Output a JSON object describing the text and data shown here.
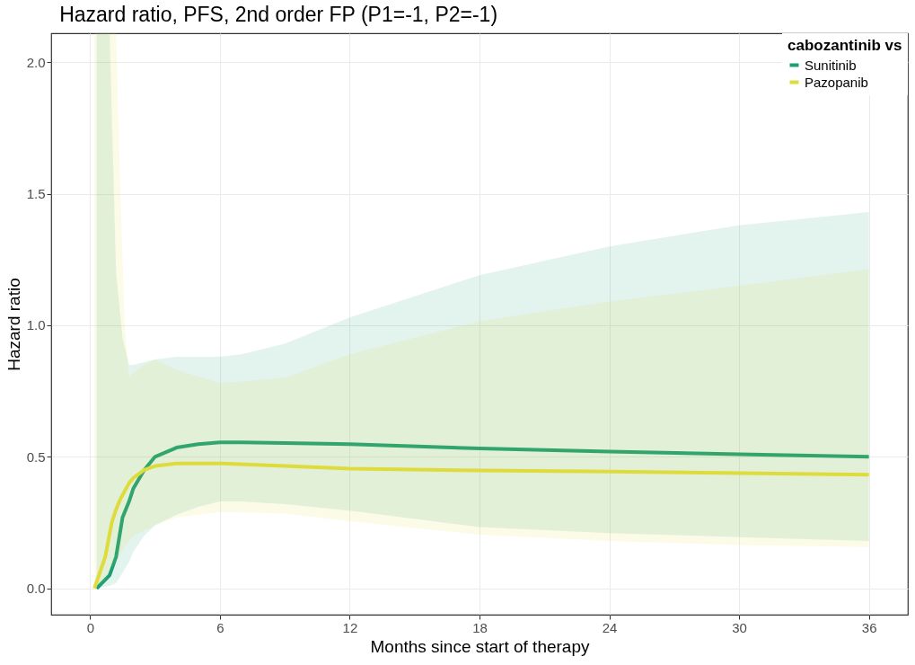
{
  "chart_data": {
    "type": "line",
    "title": "Hazard ratio, PFS, 2nd order FP (P1=-1, P2=-1)",
    "xlabel": "Months since start of therapy",
    "ylabel": "Hazard ratio",
    "legend_title": "cabozantinib vs",
    "legend": "top right",
    "grid": true,
    "line_style": "solid",
    "marker": "none",
    "xlim": [
      -1.8,
      37.8
    ],
    "ylim": [
      -0.1,
      2.11
    ],
    "xticks": [
      0,
      6,
      12,
      18,
      24,
      30,
      36
    ],
    "yticks": [
      {
        "value": 0,
        "label": "0.0"
      },
      0.5,
      {
        "value": 1,
        "label": "1.0"
      },
      1.5,
      {
        "value": 2,
        "label": "2.0"
      }
    ],
    "series": [
      {
        "name": "Sunitinib",
        "color": "#1b9e77",
        "x": [
          0.3,
          0.9,
          1.2,
          1.5,
          1.8,
          2,
          2.5,
          3,
          4,
          5,
          6,
          7,
          9,
          12,
          18,
          24,
          30,
          36
        ],
        "values": [
          0,
          0.05,
          0.12,
          0.27,
          0.33,
          0.38,
          0.45,
          0.5,
          0.535,
          0.548,
          0.555,
          0.555,
          0.552,
          0.548,
          0.532,
          0.52,
          0.51,
          0.5
        ],
        "lower": [
          0,
          0.01,
          0.02,
          0.06,
          0.1,
          0.14,
          0.2,
          0.24,
          0.28,
          0.31,
          0.33,
          0.33,
          0.32,
          0.295,
          0.233,
          0.21,
          0.195,
          0.18
        ],
        "upper": [
          2.11,
          2.11,
          1.2,
          0.95,
          0.85,
          0.85,
          0.86,
          0.87,
          0.88,
          0.88,
          0.88,
          0.89,
          0.93,
          1.03,
          1.19,
          1.3,
          1.38,
          1.43
        ]
      },
      {
        "name": "Pazopanib",
        "color": "#dedc3c",
        "x": [
          0.2,
          0.7,
          1,
          1.2,
          1.4,
          1.6,
          1.8,
          2,
          2.5,
          3,
          4,
          6,
          9,
          12,
          18,
          24,
          30,
          36
        ],
        "values": [
          0,
          0.12,
          0.25,
          0.3,
          0.34,
          0.37,
          0.4,
          0.42,
          0.45,
          0.465,
          0.475,
          0.475,
          0.465,
          0.455,
          0.448,
          0.444,
          0.438,
          0.432
        ],
        "lower": [
          0,
          0.03,
          0.08,
          0.1,
          0.13,
          0.16,
          0.18,
          0.2,
          0.22,
          0.24,
          0.27,
          0.29,
          0.285,
          0.255,
          0.204,
          0.18,
          0.165,
          0.157
        ],
        "upper": [
          2.11,
          2.11,
          2.11,
          2.11,
          1.5,
          1,
          0.8,
          0.82,
          0.85,
          0.87,
          0.83,
          0.78,
          0.8,
          0.89,
          1.015,
          1.09,
          1.15,
          1.213
        ]
      }
    ]
  }
}
